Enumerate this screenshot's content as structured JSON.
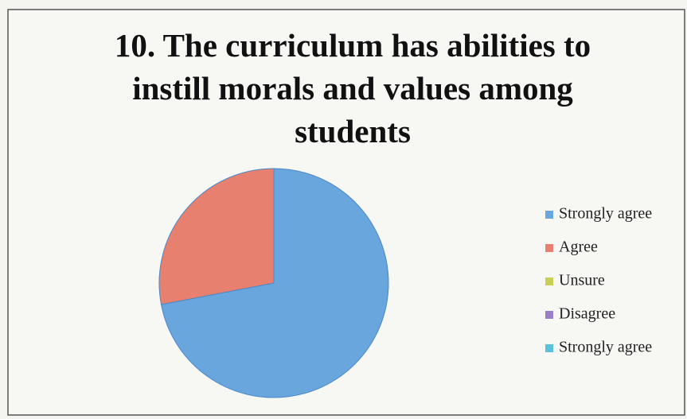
{
  "chart_data": {
    "type": "pie",
    "title": "10. The curriculum has abilities to instill morals and values among students",
    "categories": [
      "Strongly agree",
      "Agree",
      "Unsure",
      "Disagree",
      "Strongly agree"
    ],
    "values": [
      72,
      28,
      0,
      0,
      0
    ],
    "colors": [
      "#6aa6de",
      "#e8806f",
      "#c9cf55",
      "#9a7fc6",
      "#5cc2dc"
    ],
    "legend": "right"
  }
}
